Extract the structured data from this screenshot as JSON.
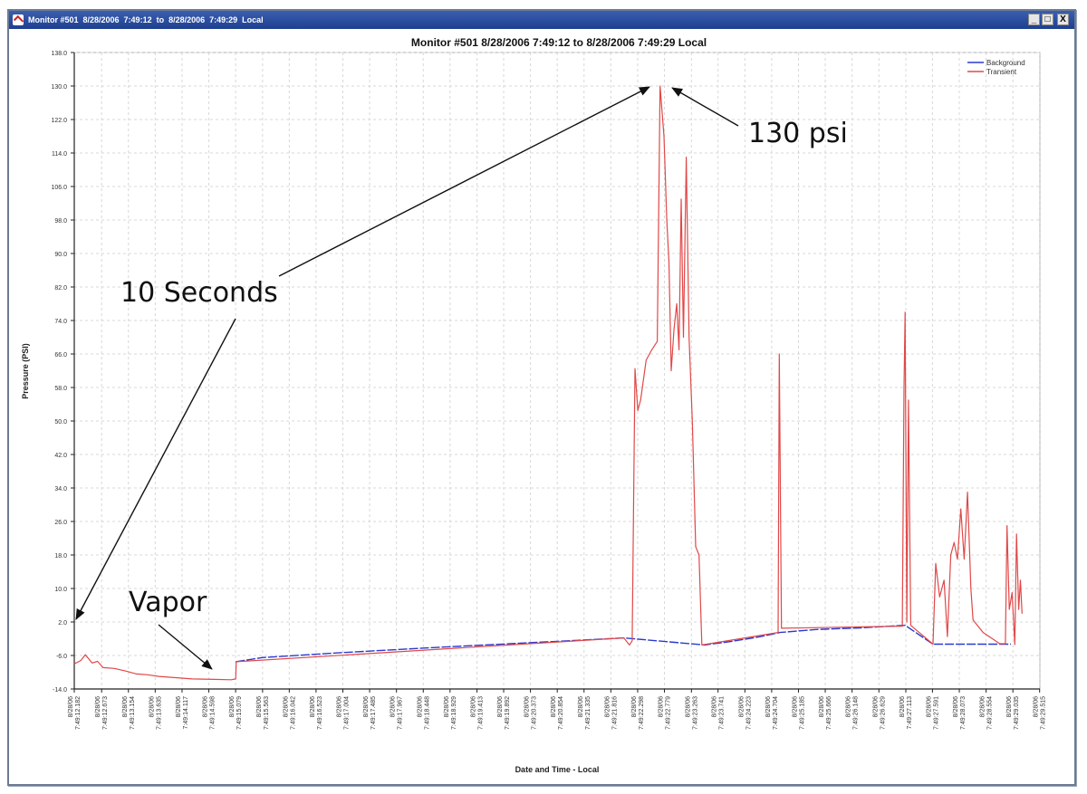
{
  "window": {
    "title": "Monitor #501  8/28/2006  7:49:12  to  8/28/2006  7:49:29  Local",
    "buttons": [
      "_",
      "□",
      "X"
    ]
  },
  "icons": {
    "app": "app-icon",
    "minimize": "minimize-icon",
    "maximize": "maximize-icon",
    "close": "close-icon"
  },
  "annotations": {
    "ten_seconds": "10 Seconds",
    "vapor": "Vapor",
    "peak": "130 psi"
  },
  "chart_data": {
    "type": "line",
    "title": "Monitor #501  8/28/2006  7:49:12  to  8/28/2006  7:49:29  Local",
    "xlabel": "Date and Time - Local",
    "ylabel": "Pressure (PSI)",
    "ylim": [
      -14,
      138
    ],
    "yticks": [
      "138.0",
      "130.0",
      "122.0",
      "114.0",
      "106.0",
      "98.0",
      "90.0",
      "82.0",
      "74.0",
      "66.0",
      "58.0",
      "50.0",
      "42.0",
      "34.0",
      "26.0",
      "18.0",
      "10.0",
      "2.0",
      "-6.0",
      "-14.0"
    ],
    "xlim": [
      12.182,
      29.52
    ],
    "xtick_date": "8/28/06",
    "xticks": [
      "7:49:12.182",
      "7:49:12.673",
      "7:49:13.154",
      "7:49:13.635",
      "7:49:14.117",
      "7:49:14.598",
      "7:49:15.079",
      "7:49:15.563",
      "7:49:16.042",
      "7:49:16.523",
      "7:49:17.004",
      "7:49:17.485",
      "7:49:17.967",
      "7:49:18.448",
      "7:49:18.929",
      "7:49:19.413",
      "7:49:19.892",
      "7:49:20.373",
      "7:49:20.854",
      "7:49:21.335",
      "7:49:21.816",
      "7:49:22.298",
      "7:49:22.779",
      "7:49:23.263",
      "7:49:23.741",
      "7:49:24.223",
      "7:49:24.704",
      "7:49:25.185",
      "7:49:25.666",
      "7:49:26.148",
      "7:49:26.629",
      "7:49:27.113",
      "7:49:27.591",
      "7:49:28.073",
      "7:49:28.554",
      "7:49:29.035",
      "7:49:29.515"
    ],
    "grid": true,
    "legend_position": "top-right",
    "series": [
      {
        "name": "Background",
        "color": "#2a3ad0",
        "points": [
          [
            15.08,
            -7.5
          ],
          [
            15.56,
            -6.5
          ],
          [
            17.0,
            -5.3
          ],
          [
            18.5,
            -4.2
          ],
          [
            20.0,
            -3.2
          ],
          [
            21.5,
            -2.2
          ],
          [
            22.05,
            -1.8
          ],
          [
            23.5,
            -3.5
          ],
          [
            24.0,
            -2.6
          ],
          [
            24.5,
            -1.5
          ],
          [
            24.85,
            -0.5
          ],
          [
            25.5,
            0.2
          ],
          [
            26.3,
            0.6
          ],
          [
            27.1,
            1.2
          ],
          [
            27.6,
            -3.3
          ],
          [
            29.0,
            -3.3
          ]
        ]
      },
      {
        "name": "Transient",
        "color": "#e04848",
        "points": [
          [
            12.18,
            -8.0
          ],
          [
            12.3,
            -7.2
          ],
          [
            12.38,
            -5.8
          ],
          [
            12.5,
            -7.8
          ],
          [
            12.6,
            -7.4
          ],
          [
            12.7,
            -8.9
          ],
          [
            12.9,
            -9.1
          ],
          [
            13.1,
            -9.7
          ],
          [
            13.3,
            -10.4
          ],
          [
            13.5,
            -10.6
          ],
          [
            13.7,
            -11.0
          ],
          [
            14.0,
            -11.3
          ],
          [
            14.3,
            -11.6
          ],
          [
            14.7,
            -11.7
          ],
          [
            15.0,
            -11.8
          ],
          [
            15.08,
            -11.6
          ],
          [
            15.09,
            -7.5
          ],
          [
            22.05,
            -1.8
          ],
          [
            22.15,
            -3.5
          ],
          [
            22.2,
            -2.5
          ],
          [
            22.25,
            62.5
          ],
          [
            22.3,
            52.5
          ],
          [
            22.35,
            55.0
          ],
          [
            22.45,
            64.5
          ],
          [
            22.55,
            67.0
          ],
          [
            22.65,
            69.0
          ],
          [
            22.7,
            130.0
          ],
          [
            22.77,
            118.0
          ],
          [
            22.82,
            98.0
          ],
          [
            22.86,
            88.0
          ],
          [
            22.9,
            62.0
          ],
          [
            22.95,
            72.0
          ],
          [
            23.0,
            78.0
          ],
          [
            23.04,
            67.0
          ],
          [
            23.08,
            103.0
          ],
          [
            23.12,
            70.0
          ],
          [
            23.17,
            113.0
          ],
          [
            23.22,
            70.0
          ],
          [
            23.28,
            50.0
          ],
          [
            23.34,
            20.0
          ],
          [
            23.4,
            18.0
          ],
          [
            23.45,
            -3.5
          ],
          [
            24.82,
            -0.5
          ],
          [
            24.84,
            66.0
          ],
          [
            24.88,
            0.5
          ],
          [
            27.05,
            1.0
          ],
          [
            27.08,
            58.0
          ],
          [
            27.1,
            76.0
          ],
          [
            27.13,
            2.0
          ],
          [
            27.16,
            55.0
          ],
          [
            27.2,
            1.2
          ],
          [
            27.6,
            -3.3
          ],
          [
            27.65,
            16.0
          ],
          [
            27.72,
            8.0
          ],
          [
            27.8,
            12.0
          ],
          [
            27.86,
            -1.5
          ],
          [
            27.92,
            18.0
          ],
          [
            27.98,
            21.0
          ],
          [
            28.04,
            17.0
          ],
          [
            28.1,
            29.0
          ],
          [
            28.16,
            17.0
          ],
          [
            28.22,
            33.0
          ],
          [
            28.28,
            10.0
          ],
          [
            28.32,
            2.5
          ],
          [
            28.5,
            -0.5
          ],
          [
            28.8,
            -3.2
          ],
          [
            28.9,
            -3.2
          ],
          [
            28.93,
            25.0
          ],
          [
            28.97,
            5.0
          ],
          [
            29.02,
            9.0
          ],
          [
            29.07,
            -3.4
          ],
          [
            29.1,
            23.0
          ],
          [
            29.14,
            5.0
          ],
          [
            29.17,
            12.0
          ],
          [
            29.2,
            4.0
          ]
        ]
      }
    ],
    "annotations": [
      {
        "text": "10 Seconds",
        "x": 12.182,
        "y": 2.0
      },
      {
        "text": "130 psi",
        "x": 22.75,
        "y": 130.0
      },
      {
        "text": "Vapor",
        "x": 14.6,
        "y": -11.5
      }
    ]
  }
}
